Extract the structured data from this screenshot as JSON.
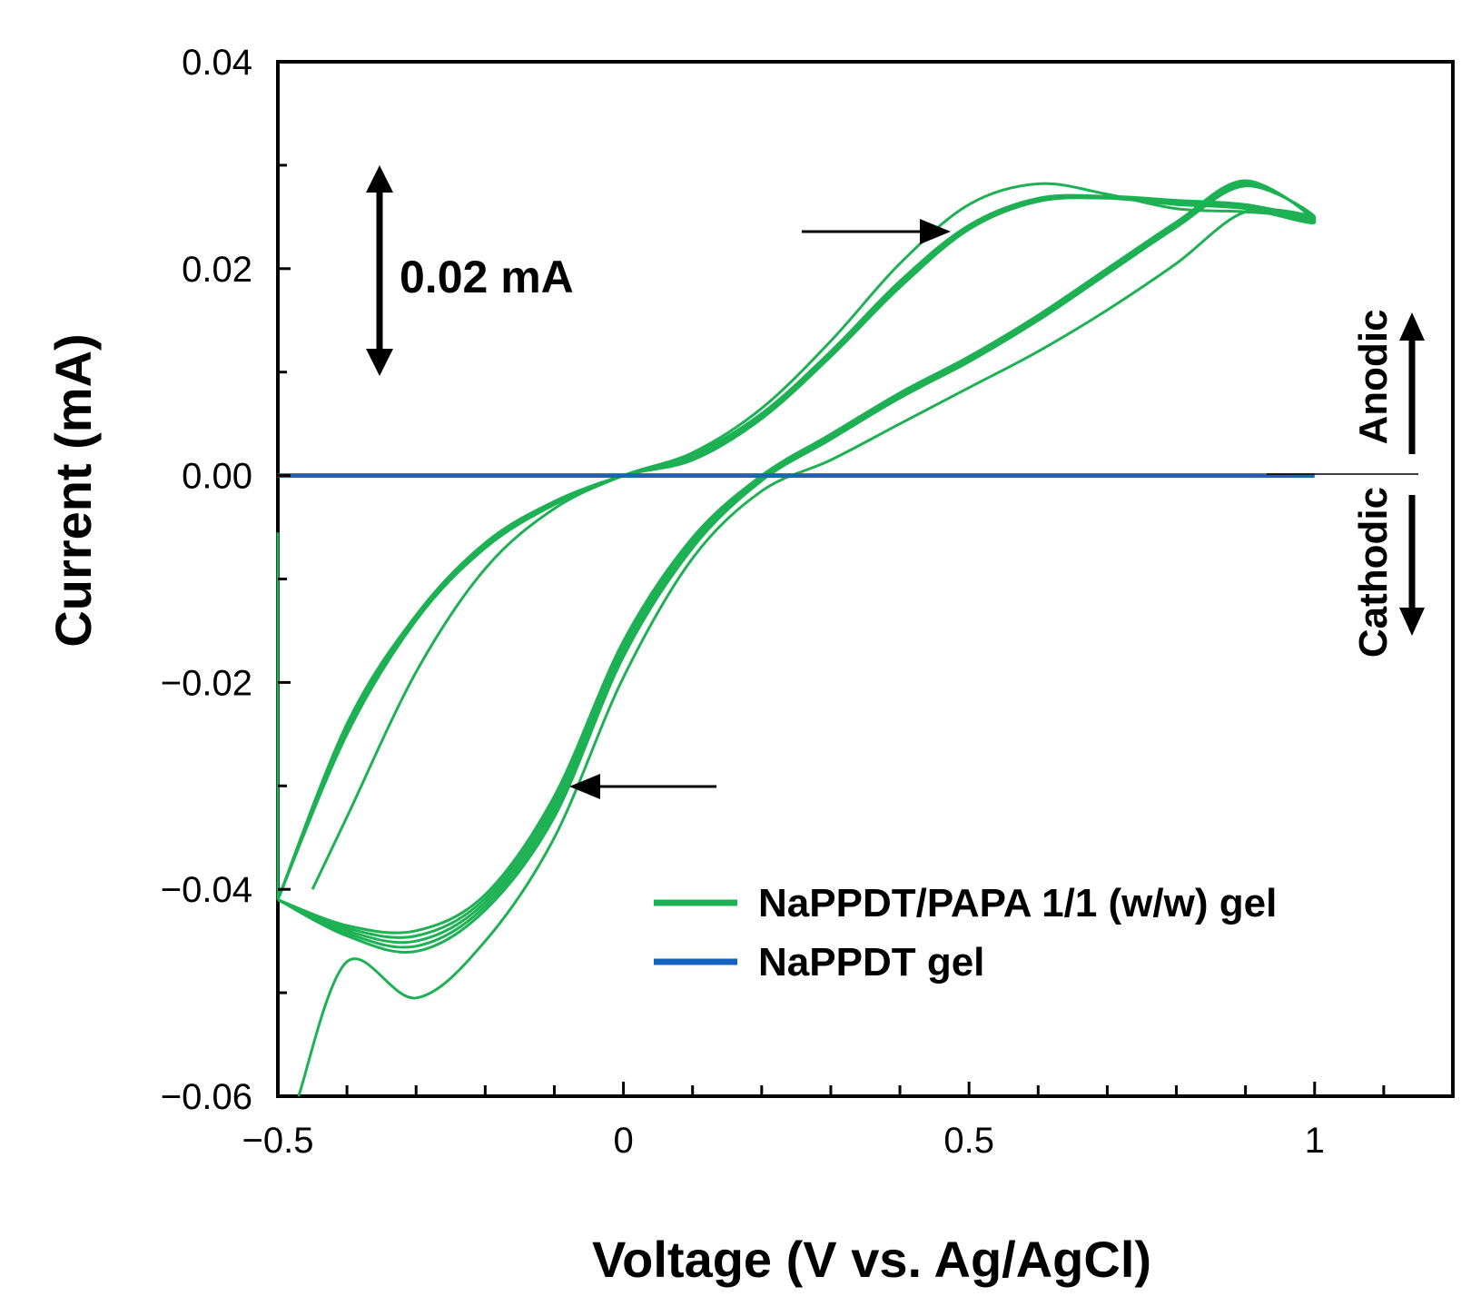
{
  "chart_data": {
    "type": "line",
    "title": "",
    "xlabel": "Voltage (V vs. Ag/AgCl)",
    "ylabel": "Current (mA)",
    "xlim": [
      -0.5,
      1.2
    ],
    "ylim": [
      -0.06,
      0.04
    ],
    "x_ticks": [
      -0.5,
      0,
      0.5,
      1
    ],
    "x_tick_labels": [
      "−0.5",
      "0",
      "0.5",
      "1"
    ],
    "y_ticks": [
      0.04,
      0.02,
      0.0,
      -0.02,
      -0.04,
      -0.06
    ],
    "y_tick_labels": [
      "0.04",
      "0.02",
      "0.00",
      "−0.02",
      "−0.04",
      "−0.06"
    ],
    "legend_position": "bottom-right",
    "series": [
      {
        "name": "NaPPDT/PAPA 1/1 (w/w) gel",
        "color": "#1db154",
        "description_of_cycles": "multiple overlapping CV cycles",
        "cycles": [
          {
            "x": [
              -0.5,
              -0.4,
              -0.3,
              -0.2,
              -0.1,
              0.0,
              0.1,
              0.2,
              0.3,
              0.4,
              0.5,
              0.6,
              0.7,
              0.8,
              0.9,
              1.0,
              0.9,
              0.8,
              0.7,
              0.6,
              0.5,
              0.4,
              0.3,
              0.2,
              0.1,
              0.0,
              -0.1,
              -0.2,
              -0.3,
              -0.4,
              -0.5
            ],
            "y": [
              -0.041,
              -0.0435,
              -0.044,
              -0.0405,
              -0.031,
              -0.016,
              -0.006,
              0.0,
              0.004,
              0.008,
              0.0115,
              0.0155,
              0.02,
              0.0245,
              0.0285,
              0.0245,
              0.0258,
              0.0262,
              0.0268,
              0.0265,
              0.0238,
              0.0182,
              0.0115,
              0.0055,
              0.0015,
              0.0,
              -0.0025,
              -0.0065,
              -0.0135,
              -0.024,
              -0.041
            ]
          },
          {
            "x": [
              -0.5,
              -0.4,
              -0.3,
              -0.2,
              -0.1,
              0.0,
              0.1,
              0.2,
              0.3,
              0.4,
              0.5,
              0.6,
              0.7,
              0.8,
              0.9,
              1.0,
              0.9,
              0.8,
              0.7,
              0.6,
              0.5,
              0.4,
              0.3,
              0.2,
              0.1,
              0.0,
              -0.1,
              -0.2,
              -0.3,
              -0.4,
              -0.5
            ],
            "y": [
              -0.041,
              -0.0445,
              -0.046,
              -0.042,
              -0.033,
              -0.0175,
              -0.007,
              -0.0005,
              0.0035,
              0.0075,
              0.011,
              0.015,
              0.0195,
              0.024,
              0.028,
              0.025,
              0.0262,
              0.0266,
              0.027,
              0.0268,
              0.0242,
              0.0188,
              0.012,
              0.006,
              0.002,
              0.0,
              -0.0028,
              -0.007,
              -0.014,
              -0.025,
              -0.041
            ]
          },
          {
            "x": [
              -0.47,
              -0.4,
              -0.3,
              -0.2,
              -0.1,
              0.0,
              0.1,
              0.2,
              0.3,
              0.4,
              0.5,
              0.6,
              0.7,
              0.8,
              0.9,
              1.0,
              0.9,
              0.8,
              0.7,
              0.6,
              0.5,
              0.4,
              0.3,
              0.2,
              0.1,
              0.0,
              -0.1,
              -0.2,
              -0.3,
              -0.4,
              -0.45
            ],
            "y": [
              -0.06,
              -0.047,
              -0.0505,
              -0.045,
              -0.035,
              -0.0195,
              -0.008,
              -0.0015,
              0.0015,
              0.005,
              0.0085,
              0.012,
              0.016,
              0.0205,
              0.0255,
              0.025,
              0.0255,
              0.0258,
              0.0272,
              0.0282,
              0.0262,
              0.0205,
              0.013,
              0.0065,
              0.0022,
              0.0,
              -0.0032,
              -0.009,
              -0.019,
              -0.033,
              -0.04
            ]
          }
        ]
      },
      {
        "name": "NaPPDT gel",
        "color": "#1565c0",
        "x": [
          -0.5,
          1.0
        ],
        "y": [
          0.0,
          0.0
        ]
      }
    ],
    "annotations": {
      "scale_bar_label": "0.02 mA",
      "scale_bar_value": 0.02,
      "anodic_label": "Anodic",
      "cathodic_label": "Cathodic"
    }
  }
}
